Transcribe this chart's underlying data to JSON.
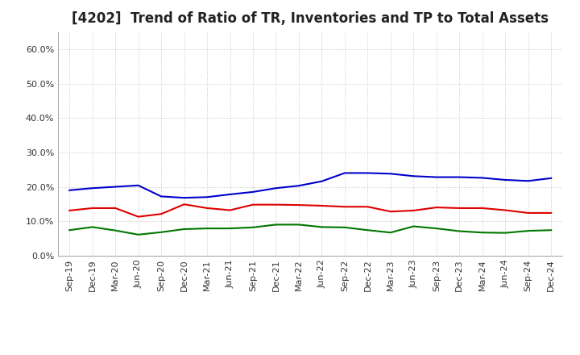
{
  "title": "[4202]  Trend of Ratio of TR, Inventories and TP to Total Assets",
  "labels": [
    "Sep-19",
    "Dec-19",
    "Mar-20",
    "Jun-20",
    "Sep-20",
    "Dec-20",
    "Mar-21",
    "Jun-21",
    "Sep-21",
    "Dec-21",
    "Mar-22",
    "Jun-22",
    "Sep-22",
    "Dec-22",
    "Mar-23",
    "Jun-23",
    "Sep-23",
    "Dec-23",
    "Mar-24",
    "Jun-24",
    "Sep-24",
    "Dec-24"
  ],
  "trade_receivables": [
    0.131,
    0.138,
    0.138,
    0.113,
    0.121,
    0.149,
    0.138,
    0.132,
    0.148,
    0.148,
    0.147,
    0.145,
    0.142,
    0.142,
    0.128,
    0.131,
    0.14,
    0.138,
    0.138,
    0.132,
    0.124,
    0.124
  ],
  "inventories": [
    0.19,
    0.196,
    0.2,
    0.204,
    0.172,
    0.168,
    0.17,
    0.178,
    0.185,
    0.196,
    0.203,
    0.216,
    0.24,
    0.24,
    0.238,
    0.231,
    0.228,
    0.228,
    0.226,
    0.22,
    0.217,
    0.225
  ],
  "trade_payables": [
    0.074,
    0.083,
    0.073,
    0.061,
    0.068,
    0.077,
    0.079,
    0.079,
    0.082,
    0.09,
    0.09,
    0.083,
    0.082,
    0.074,
    0.067,
    0.085,
    0.079,
    0.071,
    0.067,
    0.066,
    0.072,
    0.074
  ],
  "colors": {
    "trade_receivables": "#dd0000",
    "inventories": "#0000cc",
    "trade_payables": "#007700"
  },
  "ylim": [
    0.0,
    0.65
  ],
  "yticks": [
    0.0,
    0.1,
    0.2,
    0.3,
    0.4,
    0.5,
    0.6
  ],
  "background_color": "#ffffff",
  "plot_bg_color": "#f0f0f0",
  "grid_color": "#bbbbbb",
  "title_fontsize": 12,
  "legend_fontsize": 9.5,
  "tick_fontsize": 8,
  "line_width": 1.5
}
